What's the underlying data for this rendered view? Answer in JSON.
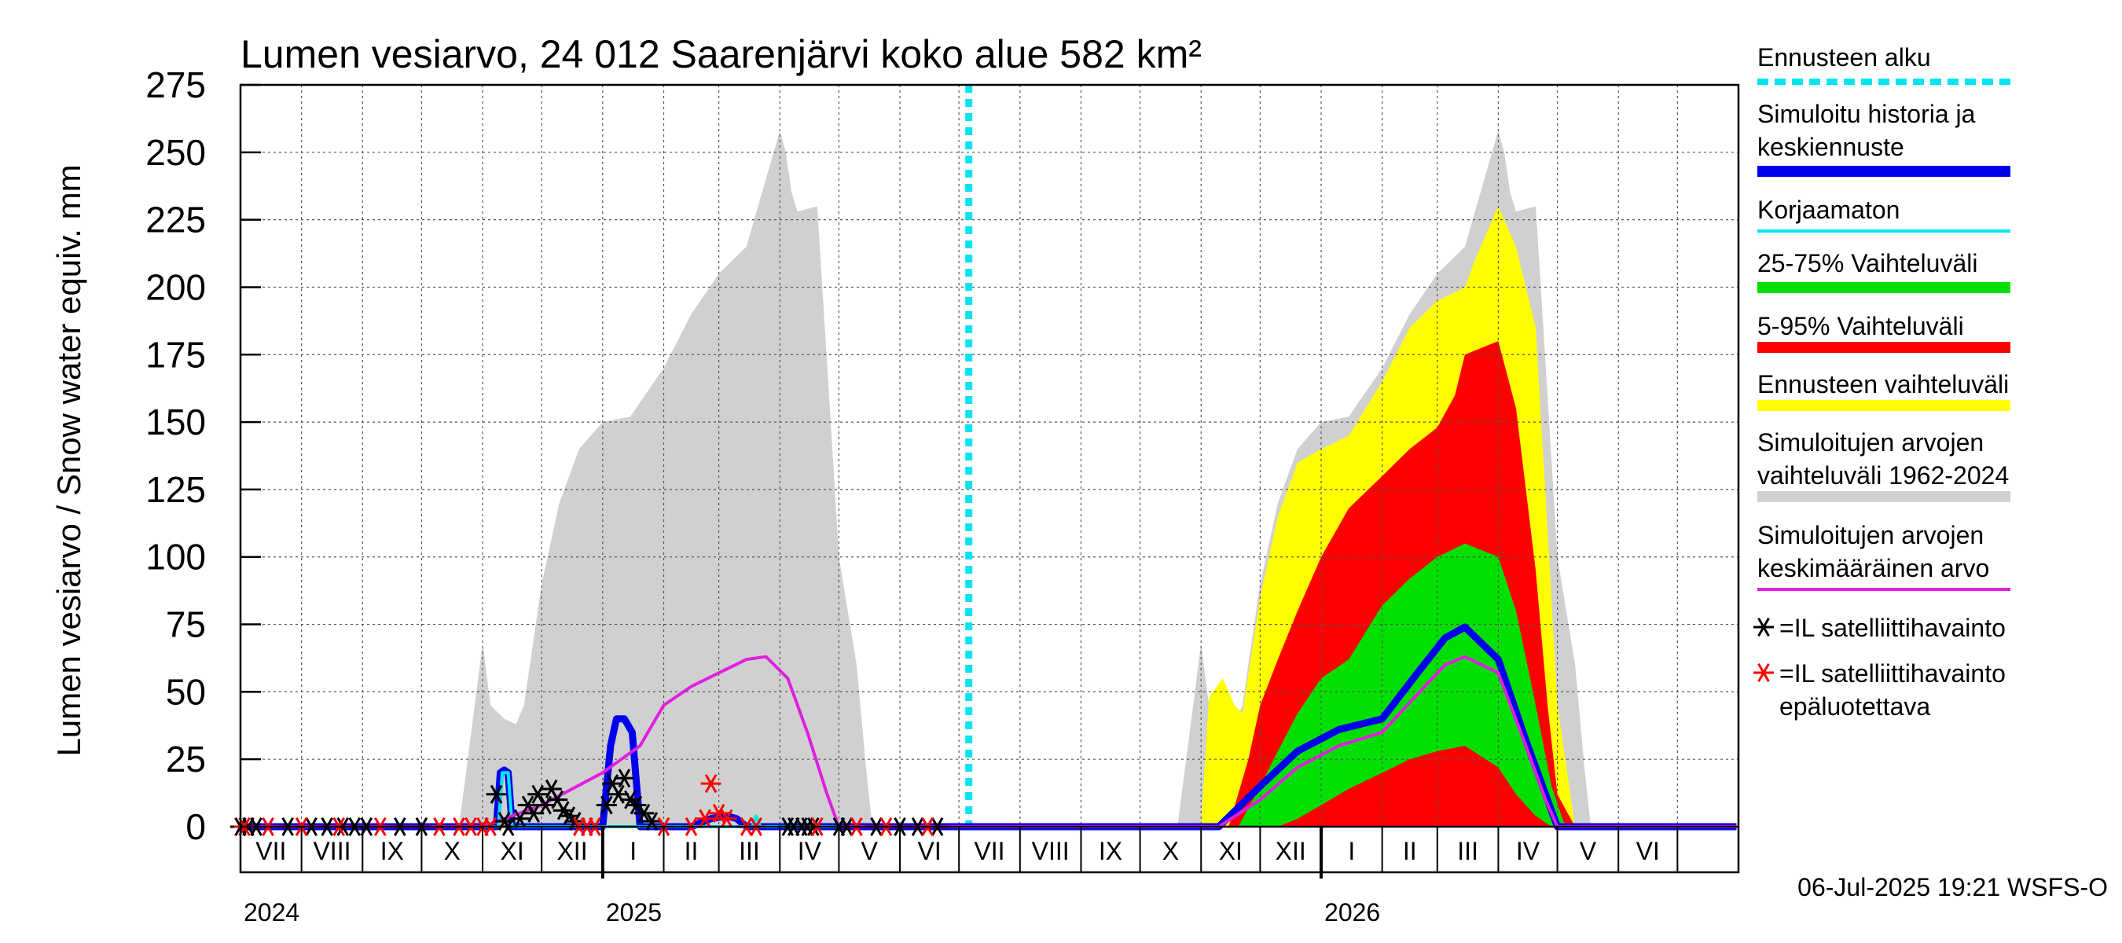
{
  "chart_data": {
    "type": "area",
    "title": "Lumen vesiarvo, 24 012 Saarenjärvi koko alue 582 km²",
    "ylabel": "Lumen vesiarvo / Snow water equiv.    mm",
    "xlabel": "",
    "ylim": [
      0,
      275
    ],
    "y_ticks": [
      0,
      25,
      50,
      75,
      100,
      125,
      150,
      175,
      200,
      225,
      250,
      275
    ],
    "x_range": [
      "2024-07-01",
      "2026-07-31"
    ],
    "month_labels": [
      "VII",
      "VIII",
      "IX",
      "X",
      "XI",
      "XII",
      "I",
      "II",
      "III",
      "IV",
      "V",
      "VI",
      "VII",
      "VIII",
      "IX",
      "X",
      "XI",
      "XII",
      "I",
      "II",
      "III",
      "IV",
      "V",
      "VI"
    ],
    "year_labels": [
      "2024",
      "2025",
      "2026"
    ],
    "grid": true,
    "legend_position": "right",
    "forecast_start": "2025-07-06",
    "footer": "06-Jul-2025 19:21 WSFS-O",
    "legend": [
      {
        "label": "Ennusteen alku",
        "color": "#00e5f0",
        "style": "dashed"
      },
      {
        "label": "Simuloitu historia ja keskiennuste",
        "color": "#0000ee",
        "style": "thick"
      },
      {
        "label": "Korjaamaton",
        "color": "#00e5f0",
        "style": "line"
      },
      {
        "label": "25-75% Vaihteluväli",
        "color": "#00e000",
        "style": "thick"
      },
      {
        "label": "5-95% Vaihteluväli",
        "color": "#ff0000",
        "style": "thick"
      },
      {
        "label": "Ennusteen vaihteluväli",
        "color": "#ffff00",
        "style": "thick"
      },
      {
        "label": "Simuloitujen arvojen vaihteluväli 1962-2024",
        "color": "#d0d0d0",
        "style": "thick"
      },
      {
        "label": "Simuloitujen arvojen keskimääräinen arvo",
        "color": "#e020e0",
        "style": "line"
      },
      {
        "label": "=IL satelliittihavainto",
        "color": "#000000",
        "style": "star"
      },
      {
        "label": "=IL satelliittihavainto epäluotettava",
        "color": "#ff0000",
        "style": "star"
      }
    ],
    "series": [
      {
        "name": "Simuloitujen arvojen vaihteluväli 1962-2024",
        "kind": "band",
        "color": "#d0d0d0",
        "x": [
          "2024-10-20",
          "2024-10-28",
          "2024-11-01",
          "2024-11-05",
          "2024-11-12",
          "2024-11-18",
          "2024-11-22",
          "2024-12-01",
          "2024-12-10",
          "2024-12-20",
          "2025-01-01",
          "2025-01-15",
          "2025-02-01",
          "2025-02-15",
          "2025-03-01",
          "2025-03-15",
          "2025-04-01",
          "2025-04-04",
          "2025-04-07",
          "2025-04-10",
          "2025-04-20",
          "2025-04-26",
          "2025-05-01",
          "2025-05-10",
          "2025-05-15",
          "2025-05-18",
          "2025-10-20",
          "2025-10-28",
          "2025-11-01",
          "2025-11-05",
          "2025-11-12",
          "2025-11-18",
          "2025-11-22",
          "2025-12-01",
          "2025-12-10",
          "2025-12-20",
          "2026-01-01",
          "2026-01-15",
          "2026-02-01",
          "2026-02-15",
          "2026-03-01",
          "2026-03-15",
          "2026-04-01",
          "2026-04-04",
          "2026-04-07",
          "2026-04-10",
          "2026-04-20",
          "2026-04-26",
          "2026-05-01",
          "2026-05-10",
          "2026-05-15",
          "2026-05-18"
        ],
        "upper": [
          0,
          45,
          68,
          45,
          40,
          38,
          45,
          90,
          120,
          140,
          150,
          152,
          170,
          190,
          205,
          215,
          258,
          250,
          235,
          228,
          230,
          160,
          100,
          60,
          20,
          0,
          0,
          45,
          68,
          45,
          40,
          38,
          45,
          90,
          120,
          140,
          150,
          152,
          170,
          190,
          205,
          215,
          258,
          250,
          235,
          228,
          230,
          160,
          100,
          60,
          20,
          0
        ],
        "lower": [
          0,
          0,
          0,
          0,
          0,
          0,
          0,
          0,
          0,
          0,
          0,
          0,
          0,
          0,
          0,
          0,
          0,
          0,
          0,
          0,
          0,
          0,
          0,
          0,
          0,
          0,
          0,
          0,
          0,
          0,
          0,
          0,
          0,
          0,
          0,
          0,
          0,
          0,
          0,
          0,
          0,
          0,
          0,
          0,
          0,
          0,
          0,
          0,
          0,
          0,
          0,
          0
        ]
      },
      {
        "name": "Ennusteen vaihteluväli",
        "kind": "band",
        "color": "#ffff00",
        "x": [
          "2025-11-01",
          "2025-11-05",
          "2025-11-12",
          "2025-11-18",
          "2025-11-22",
          "2025-12-01",
          "2025-12-10",
          "2025-12-20",
          "2026-01-01",
          "2026-01-15",
          "2026-02-01",
          "2026-02-15",
          "2026-03-01",
          "2026-03-15",
          "2026-03-20",
          "2026-04-01",
          "2026-04-10",
          "2026-04-20",
          "2026-04-26",
          "2026-05-01",
          "2026-05-10"
        ],
        "upper": [
          0,
          48,
          55,
          45,
          42,
          85,
          115,
          135,
          140,
          145,
          165,
          185,
          195,
          200,
          210,
          230,
          215,
          185,
          110,
          45,
          0
        ],
        "lower": [
          0,
          0,
          0,
          0,
          0,
          0,
          0,
          0,
          0,
          0,
          0,
          0,
          0,
          0,
          0,
          0,
          0,
          0,
          0,
          0,
          0
        ]
      },
      {
        "name": "5-95% Vaihteluväli",
        "kind": "band",
        "color": "#ff0000",
        "x": [
          "2025-11-15",
          "2025-11-25",
          "2025-12-01",
          "2025-12-10",
          "2025-12-20",
          "2026-01-01",
          "2026-01-15",
          "2026-02-01",
          "2026-02-15",
          "2026-03-01",
          "2026-03-10",
          "2026-03-15",
          "2026-04-01",
          "2026-04-10",
          "2026-04-20",
          "2026-04-26",
          "2026-05-01",
          "2026-05-10"
        ],
        "upper": [
          0,
          25,
          45,
          62,
          80,
          100,
          118,
          130,
          140,
          148,
          160,
          175,
          180,
          155,
          95,
          45,
          12,
          0
        ],
        "lower": [
          0,
          0,
          0,
          0,
          0,
          0,
          0,
          0,
          0,
          0,
          0,
          0,
          0,
          0,
          0,
          0,
          0,
          0
        ]
      },
      {
        "name": "25-75% Vaihteluväli",
        "kind": "band",
        "color": "#00e000",
        "x": [
          "2025-11-20",
          "2025-12-01",
          "2025-12-10",
          "2025-12-20",
          "2026-01-01",
          "2026-01-15",
          "2026-02-01",
          "2026-02-15",
          "2026-03-01",
          "2026-03-15",
          "2026-04-01",
          "2026-04-10",
          "2026-04-20",
          "2026-04-28",
          "2026-05-05"
        ],
        "upper": [
          0,
          15,
          28,
          42,
          55,
          62,
          82,
          92,
          100,
          105,
          100,
          80,
          45,
          15,
          0
        ],
        "lower": [
          0,
          0,
          0,
          3,
          8,
          14,
          20,
          25,
          28,
          30,
          22,
          12,
          4,
          0,
          0
        ]
      },
      {
        "name": "Simuloitu historia ja keskiennuste",
        "kind": "line",
        "color": "#0000ee",
        "x": [
          "2024-07-01",
          "2024-11-08",
          "2024-11-10",
          "2024-11-12",
          "2024-11-14",
          "2024-11-16",
          "2025-01-01",
          "2025-01-05",
          "2025-01-08",
          "2025-01-12",
          "2025-01-16",
          "2025-01-20",
          "2025-02-15",
          "2025-02-25",
          "2025-03-05",
          "2025-03-10",
          "2025-03-15",
          "2025-07-06",
          "2025-11-10",
          "2025-12-01",
          "2025-12-20",
          "2026-01-10",
          "2026-02-01",
          "2026-02-20",
          "2026-03-05",
          "2026-03-15",
          "2026-04-01",
          "2026-04-15",
          "2026-04-25",
          "2026-05-01",
          "2026-07-31"
        ],
        "y": [
          0,
          0,
          20,
          21,
          20,
          0,
          0,
          30,
          40,
          40,
          35,
          0,
          0,
          3,
          4,
          3,
          0,
          0,
          0,
          15,
          28,
          36,
          40,
          58,
          70,
          74,
          62,
          32,
          12,
          0,
          0
        ]
      },
      {
        "name": "Korjaamaton",
        "kind": "line",
        "color": "#00e5f0",
        "x": [
          "2024-07-01",
          "2024-11-09",
          "2024-11-11",
          "2024-11-14",
          "2024-11-16",
          "2025-03-18",
          "2025-03-20",
          "2025-03-22",
          "2025-07-06"
        ],
        "y": [
          0,
          0,
          20,
          20,
          0,
          0,
          4,
          0,
          0
        ]
      },
      {
        "name": "Simuloitujen arvojen keskimääräinen arvo",
        "kind": "line",
        "color": "#e020e0",
        "x": [
          "2024-07-01",
          "2024-11-01",
          "2024-12-01",
          "2025-01-01",
          "2025-01-20",
          "2025-02-01",
          "2025-02-15",
          "2025-03-01",
          "2025-03-15",
          "2025-03-25",
          "2025-04-05",
          "2025-04-15",
          "2025-04-25",
          "2025-05-01",
          "2025-07-06",
          "2025-11-10",
          "2025-12-01",
          "2025-12-20",
          "2026-01-10",
          "2026-02-01",
          "2026-02-20",
          "2026-03-05",
          "2026-03-15",
          "2026-04-01",
          "2026-04-15",
          "2026-04-25",
          "2026-05-01",
          "2026-07-31"
        ],
        "y": [
          0,
          0,
          8,
          20,
          30,
          45,
          52,
          57,
          62,
          63,
          55,
          35,
          12,
          0,
          0,
          0,
          10,
          22,
          30,
          35,
          50,
          60,
          63,
          57,
          30,
          10,
          0,
          0
        ]
      }
    ],
    "observations": [
      {
        "name": "=IL satelliittihavainto",
        "color": "#000000",
        "x": [
          "2024-07-01",
          "2024-07-05",
          "2024-07-09",
          "2024-07-25",
          "2024-08-06",
          "2024-08-14",
          "2024-08-22",
          "2024-08-28",
          "2024-09-03",
          "2024-09-20",
          "2024-10-01",
          "2024-11-08",
          "2024-11-12",
          "2024-11-14",
          "2024-11-20",
          "2024-11-24",
          "2024-11-27",
          "2024-11-29",
          "2024-12-03",
          "2024-12-06",
          "2024-12-09",
          "2024-12-12",
          "2024-12-15",
          "2024-12-18",
          "2025-01-03",
          "2025-01-06",
          "2025-01-09",
          "2025-01-12",
          "2025-01-15",
          "2025-01-18",
          "2025-01-22",
          "2025-01-26",
          "2025-04-05",
          "2025-04-08",
          "2025-04-12",
          "2025-04-15",
          "2025-04-18",
          "2025-05-01",
          "2025-05-05",
          "2025-05-20",
          "2025-06-01",
          "2025-06-10",
          "2025-06-20"
        ],
        "y": [
          0,
          0,
          0,
          0,
          0,
          0,
          0,
          0,
          0,
          0,
          0,
          12,
          2,
          0,
          3,
          8,
          5,
          12,
          8,
          14,
          10,
          6,
          4,
          2,
          8,
          16,
          12,
          18,
          10,
          8,
          5,
          2,
          0,
          0,
          0,
          0,
          0,
          0,
          0,
          0,
          0,
          0,
          0
        ]
      },
      {
        "name": "=IL satelliittihavainto epäluotettava",
        "color": "#ff0000",
        "x": [
          "2024-07-03",
          "2024-07-15",
          "2024-08-01",
          "2024-08-20",
          "2024-09-10",
          "2024-10-10",
          "2024-10-20",
          "2024-10-26",
          "2024-11-01",
          "2024-11-05",
          "2024-12-20",
          "2024-12-24",
          "2024-12-28",
          "2025-02-01",
          "2025-02-15",
          "2025-02-22",
          "2025-02-25",
          "2025-03-01",
          "2025-03-05",
          "2025-03-15",
          "2025-03-20",
          "2025-04-20",
          "2025-05-10",
          "2025-05-25",
          "2025-06-15"
        ],
        "y": [
          0,
          0,
          0,
          0,
          0,
          0,
          0,
          0,
          0,
          0,
          0,
          0,
          0,
          0,
          0,
          3,
          16,
          5,
          3,
          0,
          0,
          0,
          0,
          0,
          0
        ]
      }
    ]
  }
}
